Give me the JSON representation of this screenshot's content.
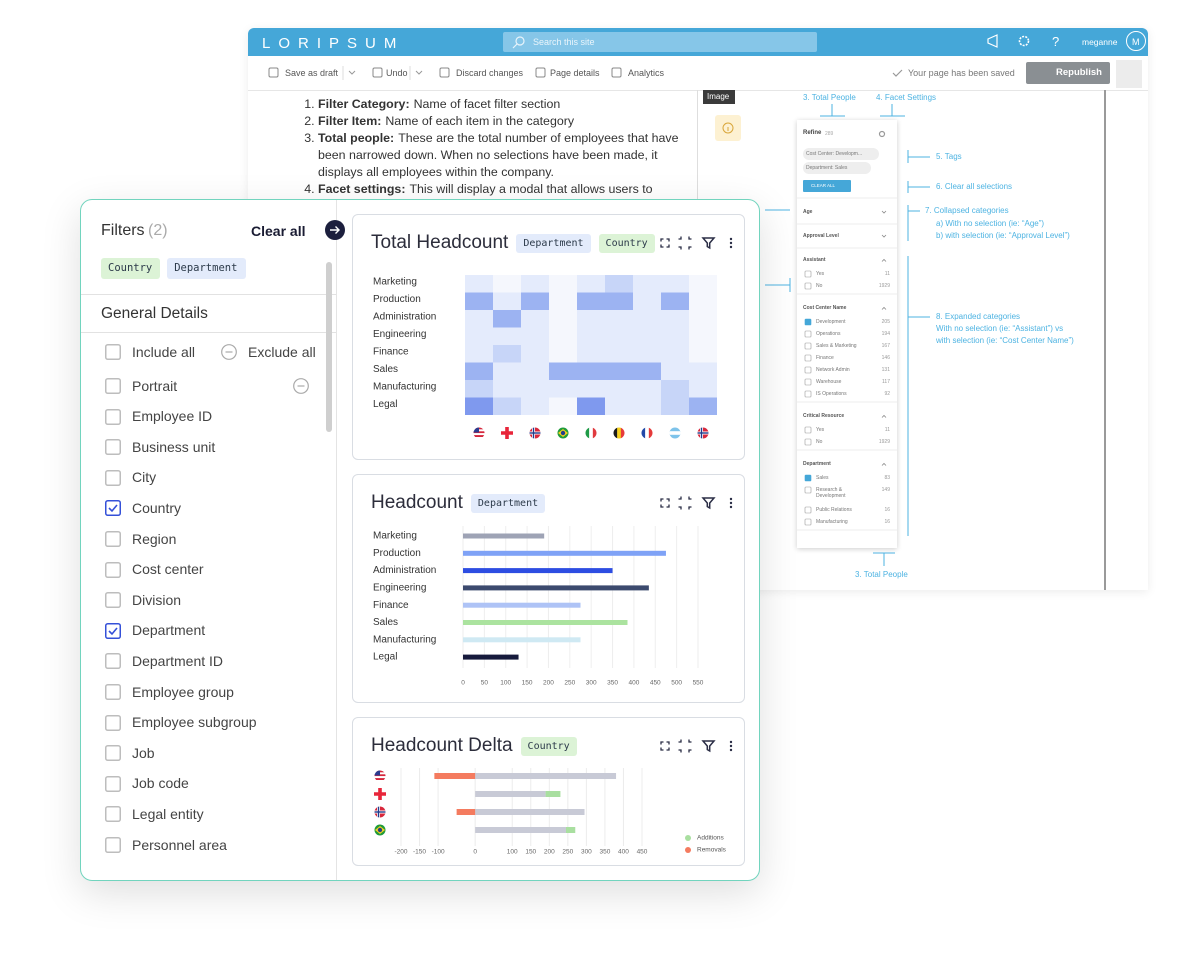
{
  "app": {
    "logo": "LORIPSUM",
    "search_placeholder": "Search this site",
    "help": "?",
    "user": "meganne",
    "avatar": "M"
  },
  "toolbar": {
    "save": "Save as draft",
    "undo": "Undo",
    "discard": "Discard changes",
    "page_details": "Page details",
    "analytics": "Analytics",
    "status": "Your page has been saved",
    "republish": "Republish"
  },
  "document": {
    "items": [
      {
        "term": "Filter Category:",
        "text": "Name of facet filter section"
      },
      {
        "term": "Filter Item:",
        "text": "Name of each item in the category"
      },
      {
        "term": "Total people:",
        "text": "These are the total number of employees that have been narrowed down. When no selections have been made, it displays all employees within the company."
      },
      {
        "term": "Facet settings:",
        "text": "This will display a modal that allows users to"
      }
    ],
    "image_label": "Image"
  },
  "facet_panel": {
    "title": "Refine",
    "count": 289,
    "tags": [
      "Cost Center: Developm...",
      "Department: Sales"
    ],
    "clear": "CLEAR ALL",
    "collapsed": [
      "Age",
      "Approval Level"
    ],
    "groups": [
      {
        "title": "Assistant",
        "items": [
          {
            "label": "Yes",
            "count": 11,
            "checked": false
          },
          {
            "label": "No",
            "count": 1929,
            "checked": false
          }
        ]
      },
      {
        "title": "Cost Center Name",
        "items": [
          {
            "label": "Development",
            "count": 205,
            "checked": true
          },
          {
            "label": "Operations",
            "count": 194,
            "checked": false
          },
          {
            "label": "Sales & Marketing",
            "count": 167,
            "checked": false
          },
          {
            "label": "Finance",
            "count": 146,
            "checked": false
          },
          {
            "label": "Network Admin",
            "count": 131,
            "checked": false
          },
          {
            "label": "Warehouse",
            "count": 117,
            "checked": false
          },
          {
            "label": "IS Operations",
            "count": 92,
            "checked": false
          }
        ]
      },
      {
        "title": "Critical Resource",
        "items": [
          {
            "label": "Yes",
            "count": 11,
            "checked": false
          },
          {
            "label": "No",
            "count": 1929,
            "checked": false
          }
        ]
      },
      {
        "title": "Department",
        "items": [
          {
            "label": "Sales",
            "count": 83,
            "checked": true
          },
          {
            "label": "Research & Development",
            "count": 149,
            "checked": false
          },
          {
            "label": "Public Relations",
            "count": 16,
            "checked": false
          },
          {
            "label": "Manufacturing",
            "count": 16,
            "checked": false
          }
        ]
      }
    ]
  },
  "annotations": {
    "total_people_top": "3. Total People",
    "facet_settings": "4. Facet Settings",
    "tags": "5. Tags",
    "clear": "6. Clear all selections",
    "collapsed": [
      "7. Collapsed categories",
      "a) With no selection (ie: “Age”)",
      "b) with selection (ie: “Approval Level”)"
    ],
    "expanded": [
      "8. Expanded categories",
      "With no selection (ie: “Assistant”) vs",
      "with selection (ie: “Cost Center Name”)"
    ],
    "total_people_bottom": "3. Total People"
  },
  "filters": {
    "title": "Filters",
    "count": "(2)",
    "clear": "Clear all",
    "tags": [
      {
        "label": "Country",
        "color": "#dcf3d6"
      },
      {
        "label": "Department",
        "color": "#e3ebfb"
      }
    ],
    "section": "General Details",
    "include_all": "Include all",
    "exclude_all": "Exclude all",
    "items": [
      {
        "label": "Portrait",
        "checked": false
      },
      {
        "label": "Employee ID",
        "checked": false
      },
      {
        "label": "Business unit",
        "checked": false
      },
      {
        "label": "City",
        "checked": false
      },
      {
        "label": "Country",
        "checked": true
      },
      {
        "label": "Region",
        "checked": false
      },
      {
        "label": "Cost center",
        "checked": false
      },
      {
        "label": "Division",
        "checked": false
      },
      {
        "label": "Department",
        "checked": true
      },
      {
        "label": "Department ID",
        "checked": false
      },
      {
        "label": "Employee group",
        "checked": false
      },
      {
        "label": "Employee subgroup",
        "checked": false
      },
      {
        "label": "Job",
        "checked": false
      },
      {
        "label": "Job code",
        "checked": false
      },
      {
        "label": "Legal entity",
        "checked": false
      },
      {
        "label": "Personnel area",
        "checked": false
      }
    ]
  },
  "chart_data": [
    {
      "type": "heatmap",
      "title": "Total Headcount",
      "tags": [
        {
          "label": "Department",
          "color": "#e3ebfb"
        },
        {
          "label": "Country",
          "color": "#dcf3d6"
        }
      ],
      "rows": [
        "Marketing",
        "Production",
        "Administration",
        "Engineering",
        "Finance",
        "Sales",
        "Manufacturing",
        "Legal"
      ],
      "categories": [
        null,
        null,
        null,
        null,
        null,
        null,
        null,
        null,
        null
      ],
      "values": [
        [
          1,
          0,
          1,
          0,
          1,
          2,
          1,
          1,
          0
        ],
        [
          3,
          1,
          3,
          0,
          3,
          3,
          1,
          3,
          0
        ],
        [
          1,
          3,
          1,
          0,
          1,
          1,
          1,
          1,
          0
        ],
        [
          1,
          1,
          1,
          0,
          1,
          1,
          1,
          1,
          0
        ],
        [
          1,
          2,
          1,
          0,
          1,
          1,
          1,
          1,
          0
        ],
        [
          3,
          1,
          1,
          3,
          3,
          3,
          3,
          1,
          1
        ],
        [
          2,
          1,
          1,
          1,
          1,
          1,
          1,
          2,
          1
        ],
        [
          4,
          2,
          1,
          0,
          4,
          1,
          1,
          2,
          3
        ]
      ],
      "color_scale": [
        "#f5f7fd",
        "#e4ebfc",
        "#c7d5f8",
        "#9cb3f2",
        "#7f99ee"
      ]
    },
    {
      "type": "bar",
      "title": "Headcount",
      "tags": [
        {
          "label": "Department",
          "color": "#e3ebfb"
        }
      ],
      "categories": [
        "Marketing",
        "Production",
        "Administration",
        "Engineering",
        "Finance",
        "Sales",
        "Manufacturing",
        "Legal"
      ],
      "values": [
        190,
        475,
        350,
        435,
        275,
        385,
        275,
        130
      ],
      "colors": [
        "#9ea3b5",
        "#7fa2f6",
        "#2d4de2",
        "#3c4a6e",
        "#aec3f6",
        "#abe39f",
        "#cfe9f3",
        "#161a3c"
      ],
      "xlim": [
        0,
        550
      ],
      "xticks": [
        0,
        50,
        100,
        150,
        200,
        250,
        300,
        350,
        400,
        450,
        500,
        550
      ],
      "grid": true
    },
    {
      "type": "bar",
      "title": "Headcount Delta",
      "tags": [
        {
          "label": "Country",
          "color": "#dcf3d6"
        }
      ],
      "categories": [
        null,
        null,
        null,
        null
      ],
      "series": [
        {
          "color": "#c8cad6",
          "values": [
            380,
            190,
            295,
            245
          ]
        },
        {
          "name": "Additions",
          "color": "#a9dfa0",
          "values": [
            null,
            40,
            null,
            25
          ]
        },
        {
          "name": "Removals",
          "color": "#f47b5f",
          "values": [
            -110,
            null,
            -50,
            null
          ]
        }
      ],
      "xlim": [
        -200,
        450
      ],
      "xticks": [
        -200,
        -150,
        -100,
        0,
        100,
        150,
        200,
        250,
        300,
        350,
        400,
        450
      ],
      "grid": true
    }
  ]
}
